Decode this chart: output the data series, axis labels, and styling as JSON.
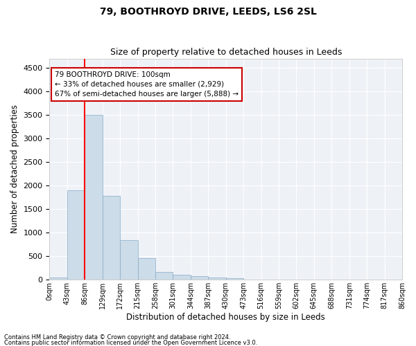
{
  "title": "79, BOOTHROYD DRIVE, LEEDS, LS6 2SL",
  "subtitle": "Size of property relative to detached houses in Leeds",
  "xlabel": "Distribution of detached houses by size in Leeds",
  "ylabel": "Number of detached properties",
  "bar_values": [
    50,
    1900,
    3500,
    1780,
    840,
    460,
    160,
    100,
    75,
    55,
    40,
    0,
    0,
    0,
    0,
    0,
    0,
    0,
    0
  ],
  "bar_color": "#ccdce8",
  "bar_edge_color": "#88aac8",
  "tick_labels": [
    "0sqm",
    "43sqm",
    "86sqm",
    "129sqm",
    "172sqm",
    "215sqm",
    "258sqm",
    "301sqm",
    "344sqm",
    "387sqm",
    "430sqm",
    "473sqm",
    "516sqm",
    "559sqm",
    "602sqm",
    "645sqm",
    "688sqm",
    "731sqm",
    "774sqm",
    "817sqm",
    "860sqm"
  ],
  "ylim": [
    0,
    4700
  ],
  "yticks": [
    0,
    500,
    1000,
    1500,
    2000,
    2500,
    3000,
    3500,
    4000,
    4500
  ],
  "red_line_x": 2,
  "annotation_text": "79 BOOTHROYD DRIVE: 100sqm\n← 33% of detached houses are smaller (2,929)\n67% of semi-detached houses are larger (5,888) →",
  "annotation_box_color": "#ffffff",
  "annotation_box_edge": "#cc0000",
  "footer_line1": "Contains HM Land Registry data © Crown copyright and database right 2024.",
  "footer_line2": "Contains public sector information licensed under the Open Government Licence v3.0.",
  "background_color": "#eef2f7",
  "fig_background_color": "#ffffff",
  "grid_color": "#ffffff",
  "title_fontsize": 10,
  "subtitle_fontsize": 9,
  "axis_label_fontsize": 8.5
}
